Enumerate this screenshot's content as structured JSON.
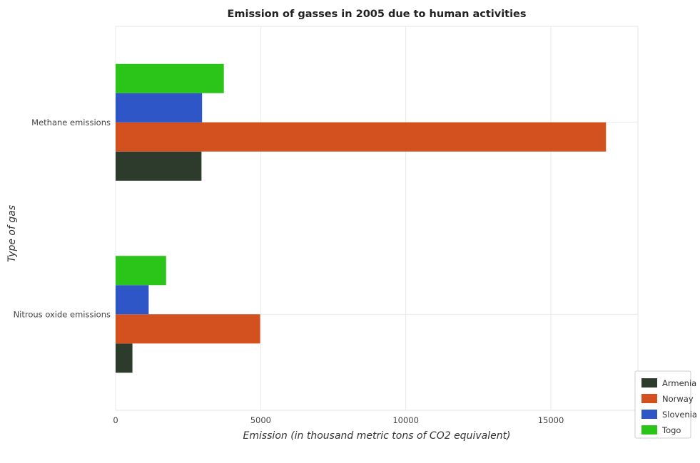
{
  "chart_data": {
    "type": "bar",
    "orientation": "horizontal",
    "title": "Emission of gasses in 2005 due to human activities",
    "xlabel": "Emission (in thousand metric tons of CO2 equivalent)",
    "ylabel": "Type of gas",
    "xlim": [
      0,
      18000
    ],
    "xticks": [
      0,
      5000,
      10000,
      15000
    ],
    "xtick_labels": [
      "0",
      "5000",
      "10000",
      "15000"
    ],
    "categories": [
      "Methane emissions",
      "Nitrous oxide emissions"
    ],
    "series": [
      {
        "name": "Armenia",
        "color": "#2d3b2d",
        "values": [
          2960,
          580
        ]
      },
      {
        "name": "Norway",
        "color": "#d2511f",
        "values": [
          16900,
          4980
        ]
      },
      {
        "name": "Slovenia",
        "color": "#2f56c6",
        "values": [
          2980,
          1140
        ]
      },
      {
        "name": "Togo",
        "color": "#2bc419",
        "values": [
          3730,
          1740
        ]
      }
    ],
    "legend_position": "bottom-right",
    "grid": true
  }
}
